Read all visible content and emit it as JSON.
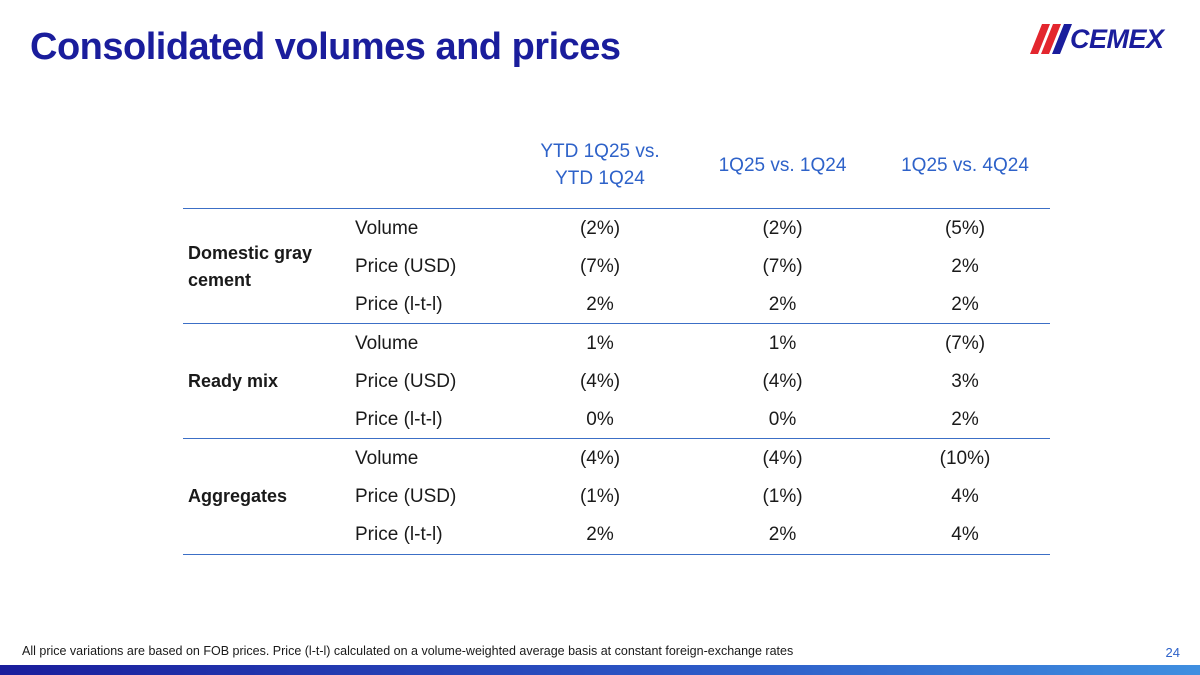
{
  "header": {
    "title": "Consolidated volumes and prices",
    "logo_text": "CEMEX"
  },
  "table": {
    "columns": [
      "YTD 1Q25 vs. YTD 1Q24",
      "1Q25 vs. 1Q24",
      "1Q25 vs. 4Q24"
    ],
    "column_lines": [
      [
        "YTD 1Q25 vs.",
        "YTD 1Q24"
      ]
    ],
    "groups": [
      {
        "label_lines": [
          "Domestic gray",
          "cement"
        ],
        "rows": [
          {
            "metric": "Volume",
            "values": [
              "(2%)",
              "(2%)",
              "(5%)"
            ]
          },
          {
            "metric": "Price (USD)",
            "values": [
              "(7%)",
              "(7%)",
              "2%"
            ]
          },
          {
            "metric": "Price (l-t-l)",
            "values": [
              "2%",
              "2%",
              "2%"
            ]
          }
        ]
      },
      {
        "label_lines": [
          "Ready mix"
        ],
        "rows": [
          {
            "metric": "Volume",
            "values": [
              "1%",
              "1%",
              "(7%)"
            ]
          },
          {
            "metric": "Price (USD)",
            "values": [
              "(4%)",
              "(4%)",
              "3%"
            ]
          },
          {
            "metric": "Price (l-t-l)",
            "values": [
              "0%",
              "0%",
              "2%"
            ]
          }
        ]
      },
      {
        "label_lines": [
          "Aggregates"
        ],
        "rows": [
          {
            "metric": "Volume",
            "values": [
              "(4%)",
              "(4%)",
              "(10%)"
            ]
          },
          {
            "metric": "Price (USD)",
            "values": [
              "(1%)",
              "(1%)",
              "4%"
            ]
          },
          {
            "metric": "Price (l-t-l)",
            "values": [
              "2%",
              "2%",
              "4%"
            ]
          }
        ]
      }
    ]
  },
  "footer": {
    "note": "All price variations are based on FOB prices. Price (l-t-l) calculated on a volume-weighted average basis at constant foreign-exchange rates",
    "page_number": "24"
  },
  "colors": {
    "title": "#1a1d9c",
    "header_text": "#2e62c9",
    "logo_red": "#e3262e",
    "rule": "#3c6fc6"
  }
}
